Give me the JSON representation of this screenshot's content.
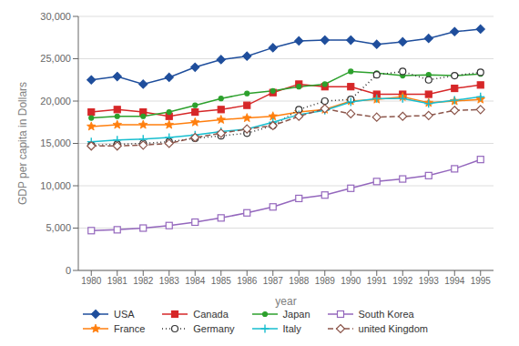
{
  "chart_data": {
    "type": "line",
    "xlabel": "year",
    "ylabel": "GDP per capita in Dollars",
    "x": [
      1980,
      1981,
      1982,
      1983,
      1984,
      1985,
      1986,
      1987,
      1988,
      1989,
      1990,
      1991,
      1992,
      1993,
      1994,
      1995
    ],
    "xlim": [
      1979.5,
      1995.5
    ],
    "xticks": [
      1980,
      1981,
      1982,
      1983,
      1984,
      1985,
      1986,
      1987,
      1988,
      1989,
      1990,
      1991,
      1992,
      1993,
      1994,
      1995
    ],
    "ylim": [
      0,
      30000
    ],
    "yticks": [
      0,
      {
        "value": 5000,
        "label": "5,000"
      },
      {
        "value": 10000,
        "label": "10,000"
      },
      {
        "value": 15000,
        "label": "15,000"
      },
      {
        "value": 20000,
        "label": "20,000"
      },
      {
        "value": 25000,
        "label": "25,000"
      },
      {
        "value": 30000,
        "label": "30,000"
      }
    ],
    "grid": true,
    "legend": "bottom",
    "series": [
      {
        "name": "USA",
        "color": "#1f4e9c",
        "marker": "diamond",
        "line_style": "solid",
        "values": [
          22500,
          22900,
          22000,
          22800,
          24000,
          24900,
          25300,
          26300,
          27100,
          27200,
          27200,
          26700,
          27000,
          27400,
          28200,
          28500
        ]
      },
      {
        "name": "Canada",
        "color": "#d62728",
        "marker": "square",
        "line_style": "solid",
        "values": [
          18700,
          19000,
          18700,
          18200,
          18700,
          19000,
          19500,
          21000,
          22000,
          21700,
          21700,
          20800,
          20800,
          20800,
          21500,
          21900
        ]
      },
      {
        "name": "Japan",
        "color": "#2ca02c",
        "marker": "circle",
        "line_style": "solid",
        "values": [
          18000,
          18200,
          18200,
          18700,
          19500,
          20300,
          20900,
          21200,
          21700,
          22000,
          23500,
          23300,
          23000,
          23100,
          23000,
          23200
        ]
      },
      {
        "name": "South Korea",
        "color": "#9467bd",
        "marker": "open_square",
        "line_style": "solid",
        "values": [
          4700,
          4800,
          5000,
          5300,
          5700,
          6200,
          6800,
          7500,
          8500,
          8900,
          9700,
          10500,
          10800,
          11200,
          12000,
          13100
        ]
      },
      {
        "name": "France",
        "color": "#ff7f0e",
        "marker": "star",
        "line_style": "solid",
        "values": [
          17000,
          17200,
          17200,
          17200,
          17500,
          17800,
          18000,
          18200,
          18700,
          19000,
          20000,
          20200,
          20500,
          19800,
          20000,
          20200
        ]
      },
      {
        "name": "Germany",
        "color": "#333333",
        "marker": "open_circle",
        "line_style": "dotted",
        "values": [
          14800,
          14900,
          15000,
          15200,
          15600,
          15900,
          16200,
          17100,
          19000,
          20000,
          20200,
          23100,
          23500,
          22500,
          23000,
          23400
        ]
      },
      {
        "name": "Italy",
        "color": "#17becf",
        "marker": "plus",
        "line_style": "solid",
        "values": [
          15200,
          15400,
          15500,
          15700,
          16000,
          16400,
          16700,
          17500,
          18400,
          18900,
          19900,
          20300,
          20300,
          19700,
          20100,
          20500
        ]
      },
      {
        "name": "united Kingdom",
        "color": "#8c564b",
        "marker": "open_diamond",
        "line_style": "dashed",
        "values": [
          14700,
          14700,
          14800,
          15000,
          15700,
          16200,
          16700,
          17100,
          18200,
          19100,
          18500,
          18100,
          18200,
          18300,
          18900,
          19000
        ]
      }
    ]
  }
}
